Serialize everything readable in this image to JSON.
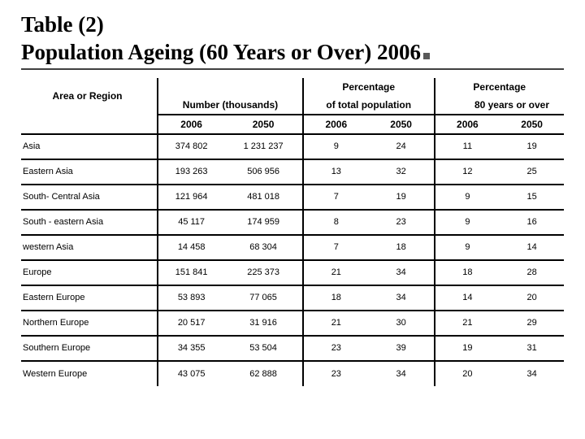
{
  "title_line1": "Table (2)",
  "title_line2": "Population Ageing (60 Years or Over) 2006",
  "headers": {
    "area": "Area or Region",
    "percentage": "Percentage",
    "number_thousands": "Number (thousands)",
    "of_total_population": "of total population",
    "eighty_over": "80 years or over",
    "y2006": "2006",
    "y2050": "2050"
  },
  "rows": [
    {
      "region": "Asia",
      "n2006": "374 802",
      "n2050": "1 231 237",
      "p2006": "9",
      "p2050": "24",
      "e2006": "11",
      "e2050": "19"
    },
    {
      "region": "Eastern Asia",
      "n2006": "193 263",
      "n2050": "506 956",
      "p2006": "13",
      "p2050": "32",
      "e2006": "12",
      "e2050": "25"
    },
    {
      "region": "South- Central Asia",
      "n2006": "121 964",
      "n2050": "481 018",
      "p2006": "7",
      "p2050": "19",
      "e2006": "9",
      "e2050": "15"
    },
    {
      "region": "South - eastern Asia",
      "n2006": "45 117",
      "n2050": "174 959",
      "p2006": "8",
      "p2050": "23",
      "e2006": "9",
      "e2050": "16"
    },
    {
      "region": "western Asia",
      "n2006": "14 458",
      "n2050": "68 304",
      "p2006": "7",
      "p2050": "18",
      "e2006": "9",
      "e2050": "14"
    },
    {
      "region": "Europe",
      "n2006": "151 841",
      "n2050": "225 373",
      "p2006": "21",
      "p2050": "34",
      "e2006": "18",
      "e2050": "28"
    },
    {
      "region": "Eastern Europe",
      "n2006": "53 893",
      "n2050": "77 065",
      "p2006": "18",
      "p2050": "34",
      "e2006": "14",
      "e2050": "20"
    },
    {
      "region": "Northern Europe",
      "n2006": "20 517",
      "n2050": "31 916",
      "p2006": "21",
      "p2050": "30",
      "e2006": "21",
      "e2050": "29"
    },
    {
      "region": "Southern Europe",
      "n2006": "34 355",
      "n2050": "53 504",
      "p2006": "23",
      "p2050": "39",
      "e2006": "19",
      "e2050": "31"
    },
    {
      "region": "Western Europe",
      "n2006": "43 075",
      "n2050": "62 888",
      "p2006": "23",
      "p2050": "34",
      "e2006": "20",
      "e2050": "34"
    }
  ],
  "style": {
    "title_fontsize": 27,
    "title_color": "#000000",
    "title_underline_color": "#404040",
    "body_font": "Arial",
    "cell_fontsize": 11,
    "header_fontsize": 12,
    "border_color": "#000000",
    "background_color": "#ffffff",
    "marker_color": "#595959",
    "col_widths": {
      "region": 168,
      "num": 88,
      "pct": 64
    }
  }
}
